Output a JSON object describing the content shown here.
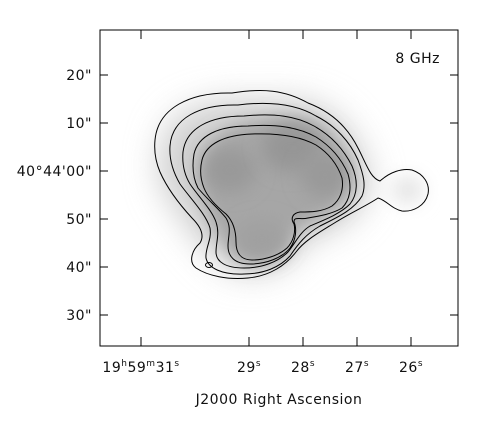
{
  "panel_label": "8 GHz",
  "xlabel": "J2000 Right Ascension",
  "dec_ticks": [
    {
      "label": "20\""
    },
    {
      "label": "10\""
    },
    {
      "label": "40°44'00\""
    },
    {
      "label": "50\""
    },
    {
      "label": "40\""
    },
    {
      "label": "30\""
    }
  ],
  "ra_ticks": [
    {
      "main": "19",
      "h": "h",
      "mid": "59",
      "m": "m",
      "sec": "31",
      "s": "s"
    },
    {
      "main": "",
      "h": "",
      "mid": "",
      "m": "",
      "sec": "29",
      "s": "s"
    },
    {
      "main": "",
      "h": "",
      "mid": "",
      "m": "",
      "sec": "28",
      "s": "s"
    },
    {
      "main": "",
      "h": "",
      "mid": "",
      "m": "",
      "sec": "27",
      "s": "s"
    },
    {
      "main": "",
      "h": "",
      "mid": "",
      "m": "",
      "sec": "26",
      "s": "s"
    }
  ]
}
